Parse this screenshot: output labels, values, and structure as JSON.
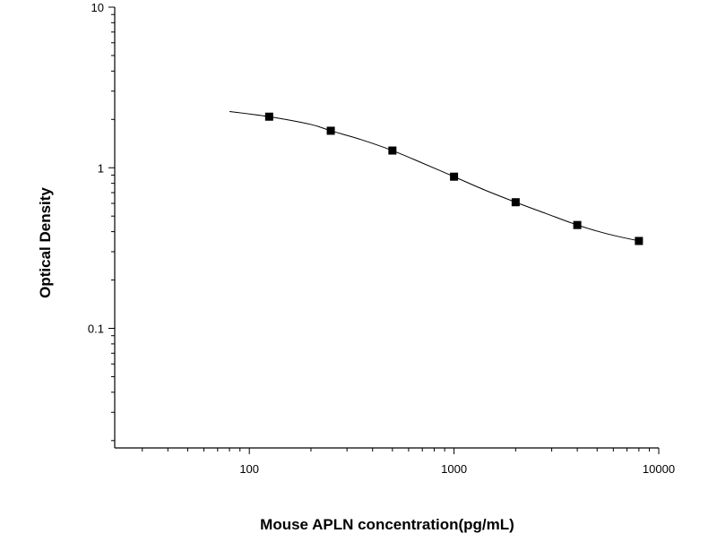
{
  "chart_data": {
    "type": "scatter",
    "title": "",
    "xlabel": "Mouse APLN concentration(pg/mL)",
    "ylabel": "Optical Density",
    "x_scale": "log",
    "y_scale": "log",
    "xlim": [
      22,
      10000
    ],
    "ylim": [
      0.018,
      10
    ],
    "x_ticks": [
      100,
      1000,
      10000
    ],
    "x_tick_labels": [
      "100",
      "1000",
      "10000"
    ],
    "y_ticks": [
      0.1,
      1,
      10
    ],
    "y_tick_labels": [
      "0.1",
      "1",
      "10"
    ],
    "grid": false,
    "legend": "none",
    "series": [
      {
        "marker": "square",
        "x": [
          125,
          250,
          500,
          1000,
          2000,
          4000,
          8000
        ],
        "y": [
          2.08,
          1.7,
          1.28,
          0.88,
          0.61,
          0.44,
          0.35
        ]
      }
    ],
    "fit_curve": {
      "x": [
        80,
        125,
        200,
        250,
        350,
        500,
        700,
        1000,
        1400,
        2000,
        2800,
        4000,
        5500,
        8000
      ],
      "y": [
        2.24,
        2.08,
        1.86,
        1.7,
        1.5,
        1.28,
        1.07,
        0.88,
        0.73,
        0.61,
        0.52,
        0.44,
        0.39,
        0.35
      ]
    },
    "colors": {
      "axis": "#000000",
      "marker": "#000000",
      "curve": "#000000"
    }
  }
}
